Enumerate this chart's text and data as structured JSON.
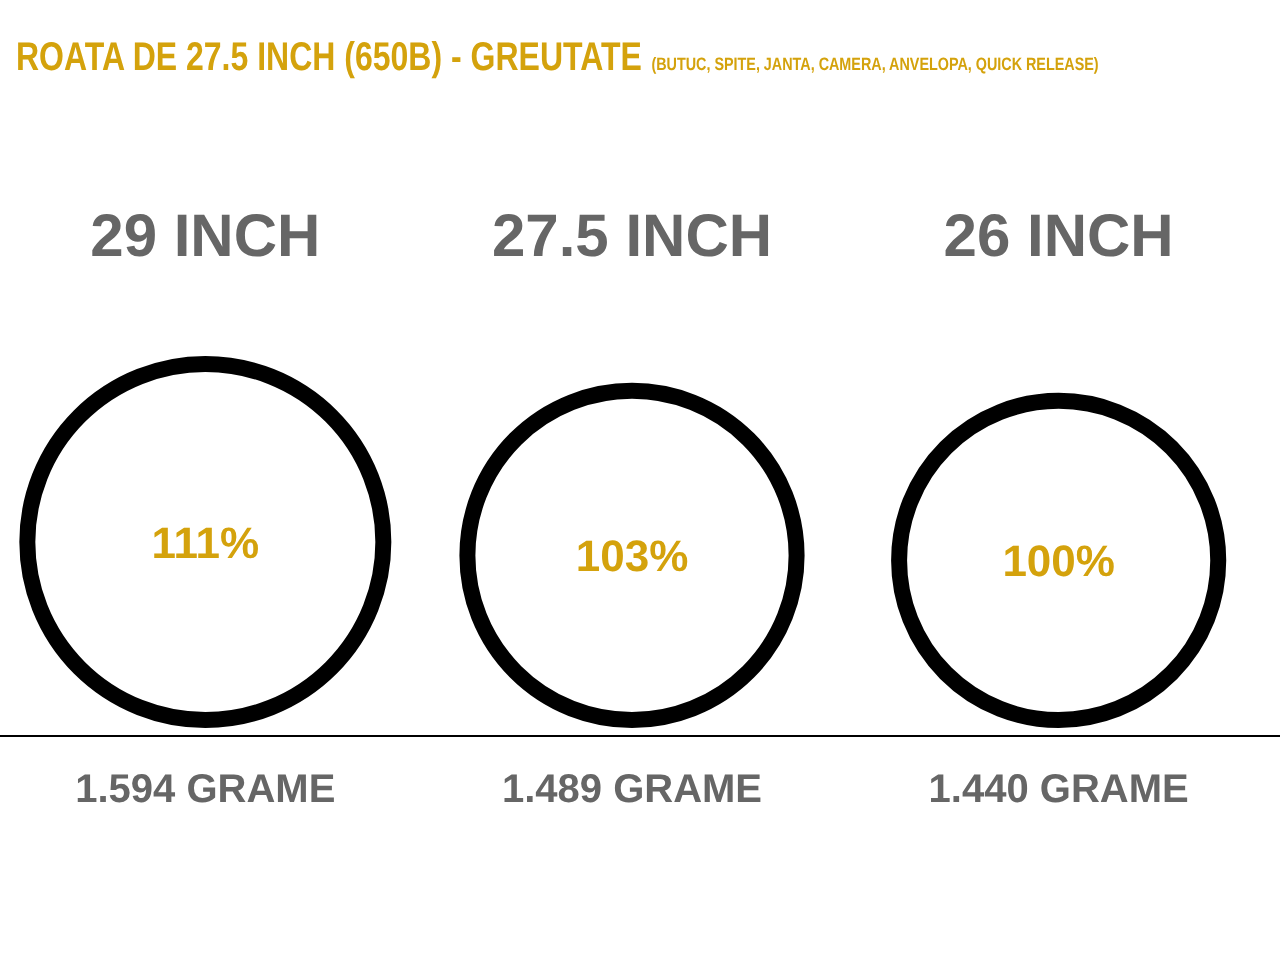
{
  "chart_data": {
    "type": "other",
    "title": "ROATA DE 27.5 INCH (650B) - GREUTATE",
    "subtitle": "(BUTUC, SPITE, JANTA, CAMERA, ANVELOPA, QUICK RELEASE)",
    "categories": [
      "29 INCH",
      "27.5 INCH",
      "26 INCH"
    ],
    "series": [
      {
        "color": "#000000",
        "values": [
          111,
          103,
          100
        ],
        "value_labels": [
          "111%",
          "103%",
          "100%"
        ]
      }
    ],
    "annotations": [
      "1.594 GRAME",
      "1.489 GRAME",
      "1.440 GRAME"
    ]
  }
}
